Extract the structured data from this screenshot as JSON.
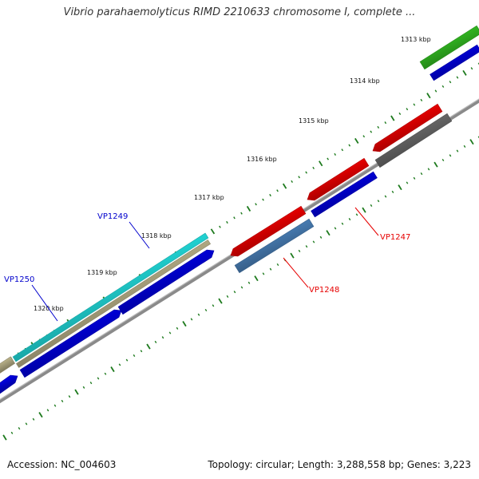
{
  "header": {
    "title": "Vibrio parahaemolyticus RIMD 2210633 chromosome I, complete ..."
  },
  "footer": {
    "accession": "Accession: NC_004603",
    "summary": "Topology: circular; Length: 3,288,558 bp; Genes: 3,223"
  },
  "scale": {
    "unit": "kbp",
    "labels": [
      "1313 kbp",
      "1314 kbp",
      "1315 kbp",
      "1316 kbp",
      "1317 kbp",
      "1318 kbp",
      "1319 kbp",
      "1320 kbp"
    ]
  },
  "genes": [
    {
      "name": "VP1247",
      "color": "#e60000",
      "kind": "callout"
    },
    {
      "name": "VP1248",
      "color": "#e60000",
      "kind": "callout"
    },
    {
      "name": "VP1249",
      "color": "#0000cc",
      "kind": "callout"
    },
    {
      "name": "VP1250",
      "color": "#0000cc",
      "kind": "callout"
    }
  ],
  "colors": {
    "backbone": "#8a8a8a",
    "tick": "#1d7a1d",
    "feature_red": "#ee0000",
    "feature_blue": "#0000dd",
    "feature_steelblue": "#4a80b8",
    "feature_grey": "#6a6a6a",
    "feature_green": "#33bb22",
    "feature_cyan": "#22dddd",
    "feature_tan": "#b8b088"
  }
}
